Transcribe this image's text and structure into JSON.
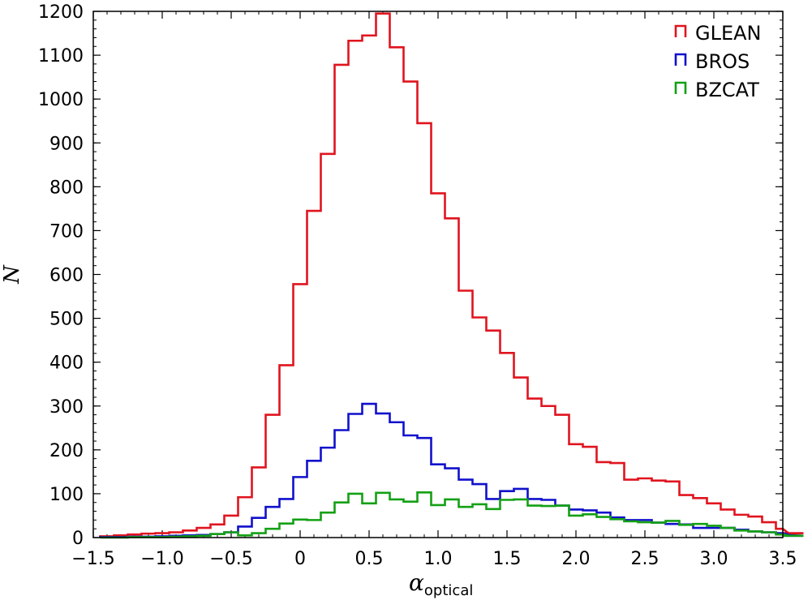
{
  "chart_data": {
    "type": "histogram",
    "xlabel": "α",
    "xlabel_subscript": "optical",
    "ylabel": "N",
    "xlim": [
      -1.5,
      3.5
    ],
    "ylim": [
      0,
      1200
    ],
    "xticks": [
      -1.5,
      -1.0,
      -0.5,
      0.0,
      0.5,
      1.0,
      1.5,
      2.0,
      2.5,
      3.0,
      3.5
    ],
    "xtick_labels": [
      "−1.5",
      "−1.0",
      "−0.5",
      "0",
      "0.5",
      "1.0",
      "1.5",
      "2.0",
      "2.5",
      "3.0",
      "3.5"
    ],
    "yticks": [
      0,
      100,
      200,
      300,
      400,
      500,
      600,
      700,
      800,
      900,
      1000,
      1100,
      1200
    ],
    "ytick_labels": [
      "0",
      "100",
      "200",
      "300",
      "400",
      "500",
      "600",
      "700",
      "800",
      "900",
      "1000",
      "1100",
      "1200"
    ],
    "grid": false,
    "legend_position": "top-right",
    "bin_edges_start": -1.45,
    "bin_width": 0.1,
    "series": [
      {
        "name": "GLEAN",
        "color": "#e0141e",
        "values": [
          3,
          5,
          7,
          9,
          10,
          12,
          16,
          22,
          30,
          50,
          92,
          160,
          280,
          393,
          578,
          745,
          875,
          1078,
          1133,
          1145,
          1195,
          1118,
          1040,
          945,
          785,
          728,
          563,
          502,
          472,
          421,
          365,
          317,
          300,
          280,
          213,
          207,
          172,
          170,
          132,
          135,
          130,
          128,
          97,
          90,
          78,
          64,
          52,
          48,
          35,
          20,
          8,
          10
        ]
      },
      {
        "name": "BROS",
        "color": "#1010cc",
        "values": [
          1,
          1,
          2,
          2,
          3,
          4,
          5,
          6,
          8,
          12,
          25,
          45,
          70,
          88,
          138,
          175,
          205,
          245,
          282,
          305,
          283,
          263,
          233,
          227,
          167,
          158,
          132,
          122,
          88,
          106,
          111,
          88,
          86,
          73,
          64,
          62,
          57,
          46,
          40,
          40,
          34,
          31,
          30,
          22,
          22,
          22,
          18,
          14,
          12,
          10,
          6,
          4
        ]
      },
      {
        "name": "BZCAT",
        "color": "#14a014",
        "values": [
          0,
          0,
          1,
          1,
          1,
          2,
          3,
          4,
          8,
          12,
          5,
          10,
          20,
          32,
          41,
          40,
          57,
          80,
          100,
          78,
          102,
          87,
          82,
          103,
          74,
          87,
          70,
          76,
          65,
          86,
          87,
          73,
          72,
          73,
          50,
          53,
          47,
          42,
          37,
          35,
          34,
          38,
          29,
          31,
          27,
          22,
          16,
          14,
          12,
          7,
          4,
          4
        ]
      }
    ]
  }
}
